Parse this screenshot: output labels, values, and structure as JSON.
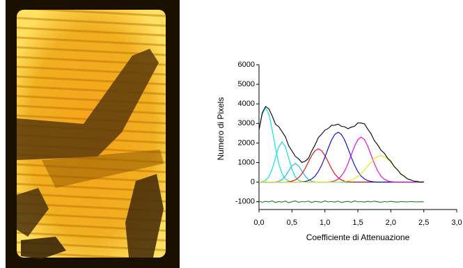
{
  "chart_data": {
    "type": "line",
    "xlabel": "Coefficiente di Attenuazione",
    "ylabel": "Numero di Pixels",
    "xlim": [
      0,
      3
    ],
    "ylim": [
      -1400,
      6000
    ],
    "xticks": [
      {
        "value": 0,
        "label": "0,0"
      },
      {
        "value": 0.5,
        "label": "0,5"
      },
      {
        "value": 1,
        "label": "1,0"
      },
      {
        "value": 1.5,
        "label": "1,5"
      },
      {
        "value": 2,
        "label": "2,0"
      },
      {
        "value": 2.5,
        "label": "2,5"
      },
      {
        "value": 3,
        "label": "3,0"
      }
    ],
    "yticks": [
      -1000,
      0,
      1000,
      2000,
      3000,
      4000,
      5000,
      6000
    ],
    "x": [
      0,
      0.05,
      0.1,
      0.15,
      0.2,
      0.25,
      0.3,
      0.35,
      0.4,
      0.45,
      0.5,
      0.55,
      0.6,
      0.65,
      0.7,
      0.75,
      0.8,
      0.85,
      0.9,
      0.95,
      1,
      1.05,
      1.1,
      1.15,
      1.2,
      1.25,
      1.3,
      1.35,
      1.4,
      1.45,
      1.5,
      1.55,
      1.6,
      1.65,
      1.7,
      1.75,
      1.8,
      1.85,
      1.9,
      1.95,
      2,
      2.05,
      2.1,
      2.15,
      2.2,
      2.25,
      2.3,
      2.35,
      2.4,
      2.45,
      2.5
    ],
    "series": [
      {
        "color": "#00e0e0",
        "values": [
          2687,
          3485,
          3800,
          3485,
          2687,
          1740,
          946,
          433,
          167,
          53,
          15,
          4,
          0,
          0,
          0,
          0,
          0,
          0,
          0,
          0,
          0,
          0,
          0,
          0,
          0,
          0,
          0,
          0,
          0,
          0,
          0,
          0,
          0,
          0,
          0,
          0,
          0,
          0,
          0,
          0,
          0,
          0,
          0,
          0,
          0,
          0,
          0,
          0,
          0,
          0,
          0
        ]
      },
      {
        "color": "#00e0e0",
        "values": [
          5,
          23,
          90,
          277,
          666,
          1243,
          1809,
          2050,
          1809,
          1243,
          666,
          277,
          90,
          23,
          5,
          1,
          0,
          0,
          0,
          0,
          0,
          0,
          0,
          0,
          0,
          0,
          0,
          0,
          0,
          0,
          0,
          0,
          0,
          0,
          0,
          0,
          0,
          0,
          0,
          0,
          0,
          0,
          0,
          0,
          0,
          0,
          0,
          0,
          0,
          0,
          0
        ]
      },
      {
        "color": "#00b8f0",
        "values": [
          0,
          0,
          0,
          0,
          2,
          11,
          42,
          129,
          308,
          576,
          838,
          950,
          838,
          576,
          308,
          129,
          42,
          11,
          2,
          0,
          0,
          0,
          0,
          0,
          0,
          0,
          0,
          0,
          0,
          0,
          0,
          0,
          0,
          0,
          0,
          0,
          0,
          0,
          0,
          0,
          0,
          0,
          0,
          0,
          0,
          0,
          0,
          0,
          0,
          0,
          0
        ]
      },
      {
        "color": "#e00000",
        "values": [
          0,
          0,
          0,
          0,
          0,
          0,
          0,
          0,
          7,
          19,
          49,
          112,
          230,
          423,
          699,
          1032,
          1362,
          1608,
          1700,
          1608,
          1362,
          1032,
          699,
          423,
          230,
          112,
          49,
          19,
          7,
          2,
          0,
          0,
          0,
          0,
          0,
          0,
          0,
          0,
          0,
          0,
          0,
          0,
          0,
          0,
          0,
          0,
          0,
          0,
          0,
          0,
          0
        ]
      },
      {
        "color": "#0000d0",
        "values": [
          0,
          0,
          0,
          0,
          0,
          0,
          0,
          0,
          0,
          0,
          0,
          0,
          5,
          13,
          33,
          77,
          161,
          306,
          538,
          864,
          1275,
          1729,
          2145,
          2443,
          2550,
          2443,
          2145,
          1729,
          1275,
          864,
          538,
          306,
          161,
          77,
          33,
          13,
          5,
          0,
          0,
          0,
          0,
          0,
          0,
          0,
          0,
          0,
          0,
          0,
          0,
          0,
          0
        ]
      },
      {
        "color": "#e000e0",
        "values": [
          0,
          0,
          0,
          0,
          0,
          0,
          0,
          0,
          0,
          0,
          0,
          0,
          0,
          0,
          0,
          0,
          0,
          0,
          0,
          0,
          0,
          9,
          25,
          67,
          152,
          311,
          573,
          945,
          1396,
          1842,
          2176,
          2300,
          2176,
          1842,
          1396,
          945,
          573,
          311,
          152,
          67,
          25,
          9,
          2,
          0,
          0,
          0,
          0,
          0,
          0,
          0,
          0
        ]
      },
      {
        "color": "#e8e800",
        "values": [
          0,
          0,
          0,
          0,
          0,
          0,
          0,
          0,
          0,
          0,
          0,
          0,
          0,
          0,
          0,
          0,
          0,
          0,
          0,
          0,
          0,
          0,
          0,
          3,
          7,
          15,
          31,
          59,
          108,
          182,
          292,
          439,
          618,
          819,
          1019,
          1191,
          1308,
          1350,
          1308,
          1191,
          1019,
          819,
          618,
          439,
          292,
          182,
          108,
          59,
          31,
          15,
          7
        ]
      },
      {
        "color": "#000000",
        "values": [
          2660,
          3540,
          3870,
          3740,
          3390,
          2960,
          2830,
          2580,
          2320,
          1860,
          1600,
          1320,
          1190,
          1010,
          1070,
          1210,
          1590,
          1900,
          2270,
          2450,
          2660,
          2740,
          2900,
          2910,
          2970,
          2850,
          2830,
          2730,
          2810,
          2860,
          3030,
          3020,
          2980,
          2710,
          2470,
          2120,
          1910,
          1640,
          1480,
          1230,
          1070,
          800,
          640,
          420,
          310,
          170,
          120,
          50,
          40,
          0,
          20
        ]
      },
      {
        "color": "#1a7a1a",
        "values": [
          -970,
          -1030,
          -980,
          -1010,
          -960,
          -1040,
          -990,
          -1020,
          -970,
          -1050,
          -1000,
          -960,
          -1030,
          -990,
          -1010,
          -970,
          -1040,
          -980,
          -1000,
          -1030,
          -960,
          -1010,
          -990,
          -1020,
          -970,
          -1040,
          -1000,
          -980,
          -1030,
          -960,
          -1010,
          -990,
          -1020,
          -980,
          -1010,
          -970,
          -1000,
          -1030,
          -990,
          -1010,
          -980,
          -1000,
          -1020,
          -990,
          -1000,
          -1010,
          -990,
          -1000,
          -1010,
          -1000,
          -1000
        ]
      }
    ]
  }
}
